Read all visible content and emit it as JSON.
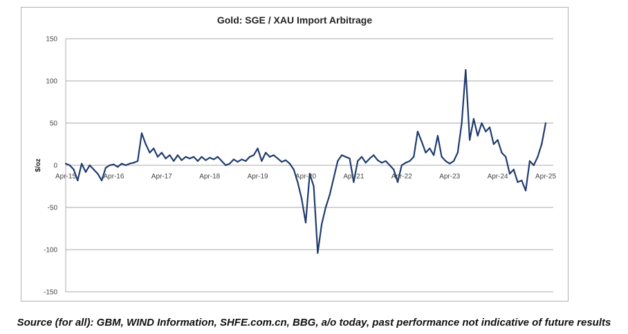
{
  "chart_data": {
    "type": "line",
    "title": "Gold: SGE / XAU Import Arbitrage",
    "xlabel": "",
    "ylabel": "$/oz",
    "ylim": [
      -150,
      150
    ],
    "yticks": [
      150,
      100,
      50,
      0,
      -50,
      -100,
      -150
    ],
    "xticks": [
      "Apr-15",
      "Apr-16",
      "Apr-17",
      "Apr-18",
      "Apr-19",
      "Apr-20",
      "Apr-21",
      "Apr-22",
      "Apr-23",
      "Apr-24",
      "Apr-25"
    ],
    "grid": "horizontal",
    "line_color": "#1f3a6e",
    "x": [
      "2015-04",
      "2015-05",
      "2015-06",
      "2015-07",
      "2015-08",
      "2015-09",
      "2015-10",
      "2015-11",
      "2015-12",
      "2016-01",
      "2016-02",
      "2016-03",
      "2016-04",
      "2016-05",
      "2016-06",
      "2016-07",
      "2016-08",
      "2016-09",
      "2016-10",
      "2016-11",
      "2016-12",
      "2017-01",
      "2017-02",
      "2017-03",
      "2017-04",
      "2017-05",
      "2017-06",
      "2017-07",
      "2017-08",
      "2017-09",
      "2017-10",
      "2017-11",
      "2017-12",
      "2018-01",
      "2018-02",
      "2018-03",
      "2018-04",
      "2018-05",
      "2018-06",
      "2018-07",
      "2018-08",
      "2018-09",
      "2018-10",
      "2018-11",
      "2018-12",
      "2019-01",
      "2019-02",
      "2019-03",
      "2019-04",
      "2019-05",
      "2019-06",
      "2019-07",
      "2019-08",
      "2019-09",
      "2019-10",
      "2019-11",
      "2019-12",
      "2020-01",
      "2020-02",
      "2020-03",
      "2020-04",
      "2020-05",
      "2020-06",
      "2020-07",
      "2020-08",
      "2020-09",
      "2020-10",
      "2020-11",
      "2020-12",
      "2021-01",
      "2021-02",
      "2021-03",
      "2021-04",
      "2021-05",
      "2021-06",
      "2021-07",
      "2021-08",
      "2021-09",
      "2021-10",
      "2021-11",
      "2021-12",
      "2022-01",
      "2022-02",
      "2022-03",
      "2022-04",
      "2022-05",
      "2022-06",
      "2022-07",
      "2022-08",
      "2022-09",
      "2022-10",
      "2022-11",
      "2022-12",
      "2023-01",
      "2023-02",
      "2023-03",
      "2023-04",
      "2023-05",
      "2023-06",
      "2023-07",
      "2023-08",
      "2023-09",
      "2023-10",
      "2023-11",
      "2023-12",
      "2024-01",
      "2024-02",
      "2024-03",
      "2024-04",
      "2024-05",
      "2024-06",
      "2024-07",
      "2024-08",
      "2024-09",
      "2024-10",
      "2024-11",
      "2024-12",
      "2025-01",
      "2025-02",
      "2025-03",
      "2025-04"
    ],
    "y": [
      2,
      0,
      -5,
      -18,
      2,
      -8,
      0,
      -5,
      -10,
      -18,
      -3,
      0,
      1,
      -2,
      2,
      0,
      2,
      3,
      5,
      38,
      25,
      15,
      20,
      10,
      15,
      8,
      12,
      5,
      12,
      6,
      10,
      8,
      10,
      5,
      10,
      6,
      9,
      7,
      10,
      5,
      0,
      2,
      7,
      4,
      7,
      5,
      10,
      12,
      20,
      5,
      15,
      10,
      12,
      8,
      4,
      6,
      2,
      -5,
      -20,
      -40,
      -68,
      -10,
      -25,
      -104,
      -70,
      -50,
      -35,
      -15,
      5,
      12,
      10,
      8,
      -20,
      5,
      10,
      3,
      8,
      12,
      6,
      3,
      5,
      0,
      -5,
      -20,
      0,
      3,
      5,
      10,
      40,
      28,
      15,
      20,
      12,
      35,
      10,
      5,
      2,
      5,
      15,
      50,
      113,
      30,
      55,
      35,
      50,
      40,
      45,
      25,
      30,
      15,
      10,
      -10,
      -5,
      -20,
      -18,
      -30,
      5,
      0,
      10,
      25,
      50
    ]
  },
  "source": "Source (for all): GBM, WIND Information, SHFE.com.cn, BBG, a/o today, past performance not indicative of future results"
}
